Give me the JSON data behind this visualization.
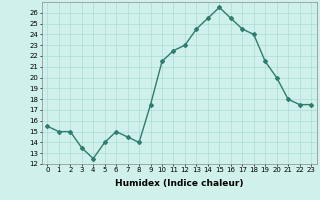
{
  "xlabel": "Humidex (Indice chaleur)",
  "x_values": [
    0,
    1,
    2,
    3,
    4,
    5,
    6,
    7,
    8,
    9,
    10,
    11,
    12,
    13,
    14,
    15,
    16,
    17,
    18,
    19,
    20,
    21,
    22,
    23
  ],
  "y_values": [
    15.5,
    15.0,
    15.0,
    13.5,
    12.5,
    14.0,
    15.0,
    14.5,
    14.0,
    17.5,
    21.5,
    22.5,
    23.0,
    24.5,
    25.5,
    26.5,
    25.5,
    24.5,
    24.0,
    21.5,
    20.0,
    18.0,
    17.5,
    17.5
  ],
  "ylim": [
    12,
    27
  ],
  "xlim": [
    -0.5,
    23.5
  ],
  "yticks": [
    12,
    13,
    14,
    15,
    16,
    17,
    18,
    19,
    20,
    21,
    22,
    23,
    24,
    25,
    26
  ],
  "xticks": [
    0,
    1,
    2,
    3,
    4,
    5,
    6,
    7,
    8,
    9,
    10,
    11,
    12,
    13,
    14,
    15,
    16,
    17,
    18,
    19,
    20,
    21,
    22,
    23
  ],
  "line_color": "#2e7d6e",
  "marker": "D",
  "marker_size": 2,
  "line_width": 1.0,
  "bg_color": "#cff0eb",
  "grid_color": "#aaddda",
  "tick_fontsize": 5,
  "label_fontsize": 6.5
}
